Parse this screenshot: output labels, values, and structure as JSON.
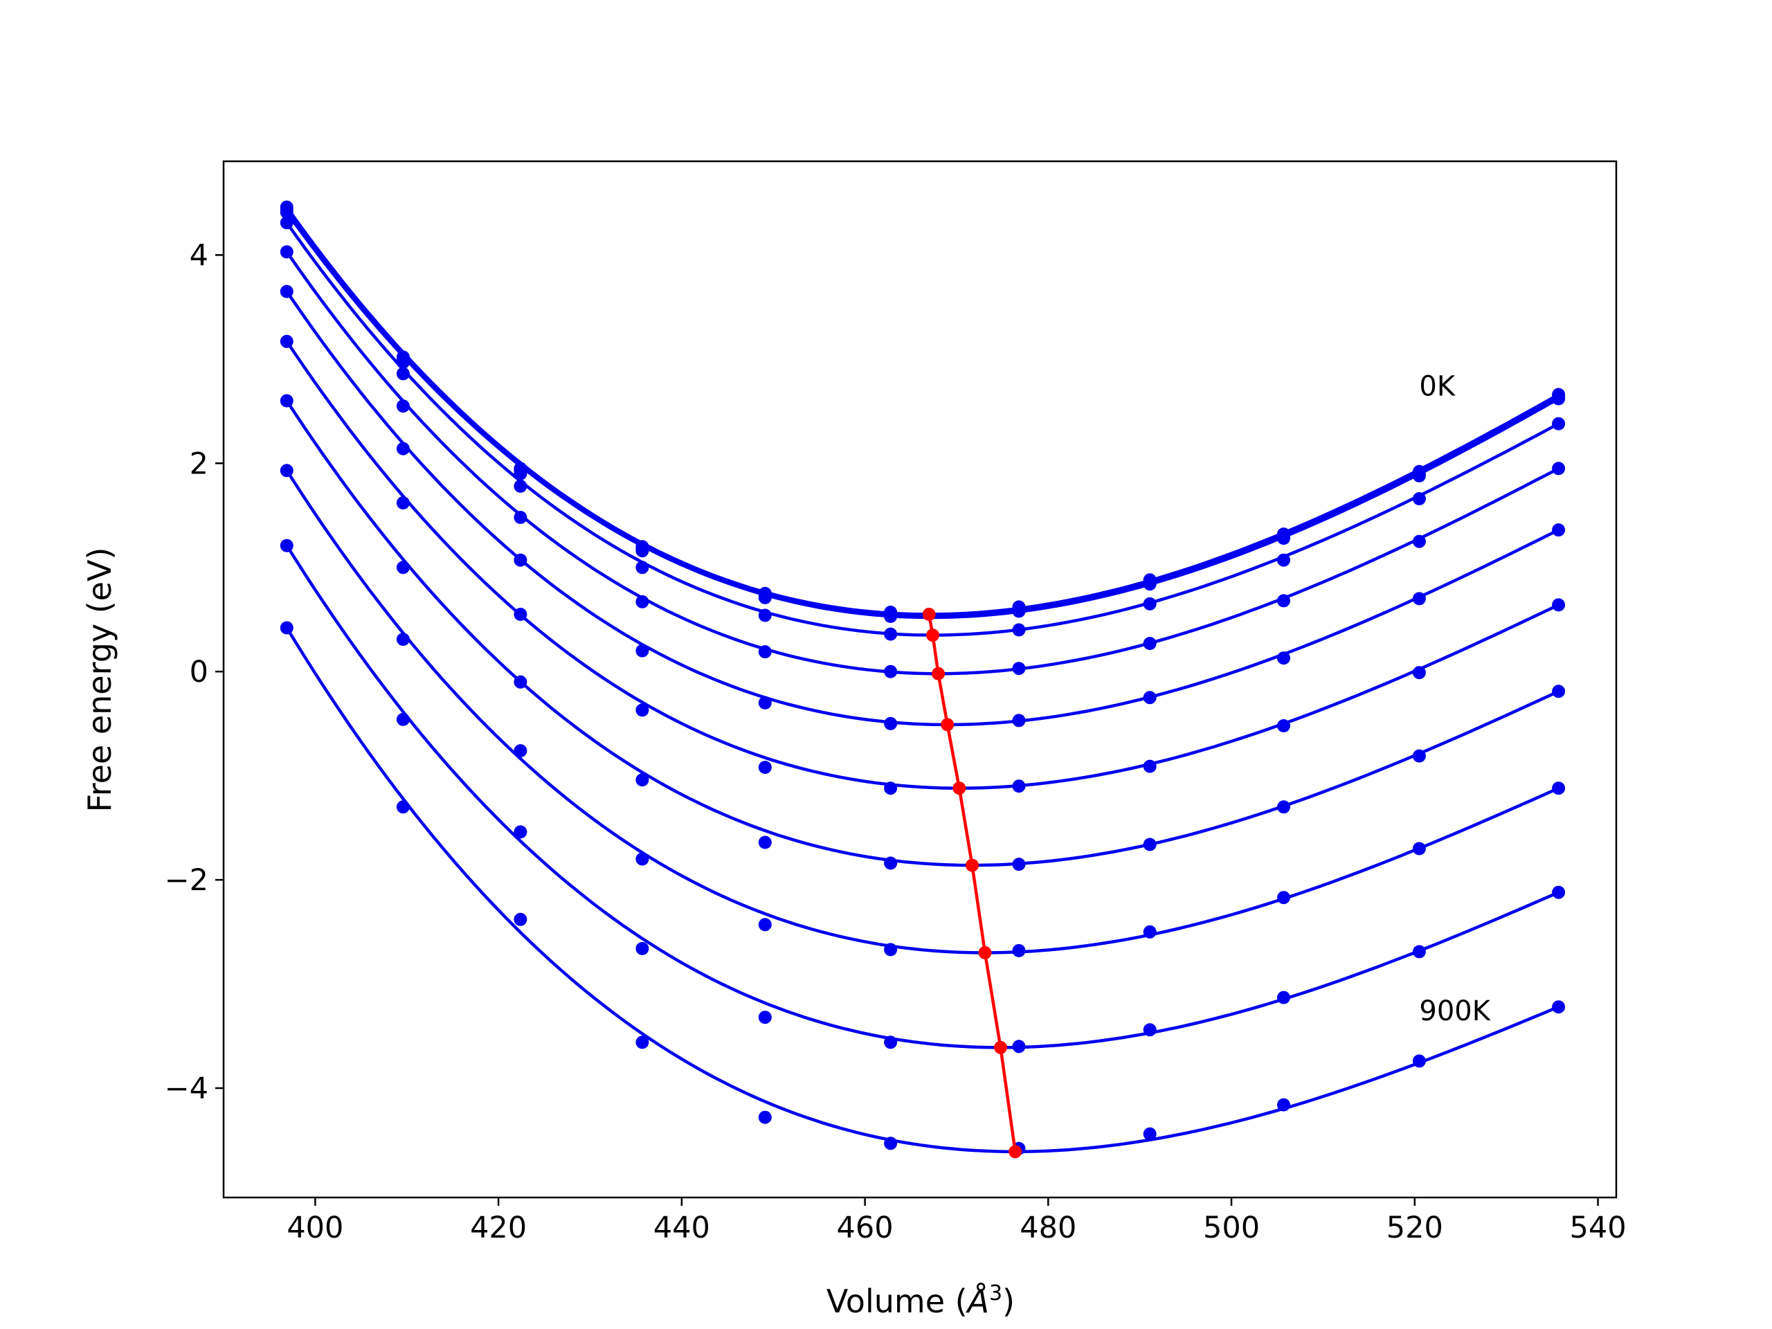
{
  "chart_data": {
    "type": "line",
    "title": "",
    "xlabel_main": "Volume (",
    "xlabel_unit": "Å",
    "xlabel_exp": "3",
    "xlabel_close": ")",
    "ylabel": "Free energy (eV)",
    "xlim": [
      390,
      542
    ],
    "ylim": [
      -5.05,
      4.9
    ],
    "xticks": [
      400,
      420,
      440,
      460,
      480,
      500,
      520,
      540
    ],
    "xtick_labels": [
      "400",
      "420",
      "440",
      "460",
      "480",
      "500",
      "520",
      "540"
    ],
    "yticks": [
      -4,
      -2,
      0,
      2,
      4
    ],
    "ytick_labels": [
      "−4",
      "−2",
      "0",
      "2",
      "4"
    ],
    "grid": false,
    "annotations": [
      {
        "text": "0K",
        "x": 520.5,
        "y": 2.65
      },
      {
        "text": "900K",
        "x": 520.5,
        "y": -3.35
      }
    ],
    "volumes": [
      396.9,
      409.6,
      422.4,
      435.7,
      449.1,
      462.8,
      476.8,
      491.1,
      505.7,
      520.5,
      535.7
    ],
    "series": [
      {
        "color": "#0000ee",
        "minimum": [
          467.0,
          0.55
        ],
        "values": [
          4.46,
          3.02,
          1.95,
          1.2,
          0.75,
          0.57,
          0.62,
          0.88,
          1.32,
          1.92,
          2.66
        ]
      },
      {
        "color": "#0000ee",
        "minimum": [
          467.0,
          0.54
        ],
        "values": [
          4.44,
          3.0,
          1.93,
          1.18,
          0.73,
          0.55,
          0.6,
          0.86,
          1.3,
          1.9,
          2.64
        ]
      },
      {
        "color": "#0000ee",
        "minimum": [
          467.2,
          0.52
        ],
        "values": [
          4.41,
          2.97,
          1.9,
          1.16,
          0.71,
          0.53,
          0.58,
          0.84,
          1.28,
          1.88,
          2.62
        ]
      },
      {
        "color": "#0000ee",
        "minimum": [
          467.4,
          0.35
        ],
        "values": [
          4.31,
          2.86,
          1.78,
          1.0,
          0.54,
          0.36,
          0.4,
          0.65,
          1.07,
          1.66,
          2.38
        ]
      },
      {
        "color": "#0000ee",
        "minimum": [
          468.0,
          -0.02
        ],
        "values": [
          4.03,
          2.55,
          1.48,
          0.67,
          0.19,
          0.0,
          0.03,
          0.27,
          0.68,
          1.25,
          1.95
        ]
      },
      {
        "color": "#0000ee",
        "minimum": [
          469.0,
          -0.51
        ],
        "values": [
          3.65,
          2.14,
          1.07,
          0.2,
          -0.3,
          -0.5,
          -0.47,
          -0.25,
          0.13,
          0.7,
          1.36
        ]
      },
      {
        "color": "#0000ee",
        "minimum": [
          470.3,
          -1.12
        ],
        "values": [
          3.17,
          1.62,
          0.55,
          -0.37,
          -0.92,
          -1.12,
          -1.1,
          -0.91,
          -0.52,
          -0.01,
          0.64
        ]
      },
      {
        "color": "#0000ee",
        "minimum": [
          471.7,
          -1.86
        ],
        "values": [
          2.6,
          1.0,
          -0.1,
          -1.04,
          -1.64,
          -1.84,
          -1.85,
          -1.66,
          -1.3,
          -0.81,
          -0.19
        ]
      },
      {
        "color": "#0000ee",
        "minimum": [
          473.1,
          -2.7
        ],
        "values": [
          1.93,
          0.31,
          -0.76,
          -1.8,
          -2.43,
          -2.67,
          -2.68,
          -2.5,
          -2.17,
          -1.7,
          -1.12
        ]
      },
      {
        "color": "#0000ee",
        "minimum": [
          474.8,
          -3.61
        ],
        "values": [
          1.21,
          -0.46,
          -1.54,
          -2.66,
          -3.32,
          -3.56,
          -3.6,
          -3.44,
          -3.13,
          -2.69,
          -2.12
        ]
      },
      {
        "color": "#0000ee",
        "minimum": [
          476.4,
          -4.61
        ],
        "values": [
          0.42,
          -1.3,
          -2.38,
          -3.56,
          -4.28,
          -4.53,
          -4.58,
          -4.44,
          -4.16,
          -3.74,
          -3.22
        ]
      }
    ],
    "minima_curve": {
      "color": "#ff0000",
      "points": [
        [
          467.0,
          0.55
        ],
        [
          467.4,
          0.35
        ],
        [
          468.0,
          -0.02
        ],
        [
          469.0,
          -0.51
        ],
        [
          470.3,
          -1.12
        ],
        [
          471.7,
          -1.86
        ],
        [
          473.1,
          -2.7
        ],
        [
          474.8,
          -3.61
        ],
        [
          476.4,
          -4.61
        ]
      ]
    }
  }
}
